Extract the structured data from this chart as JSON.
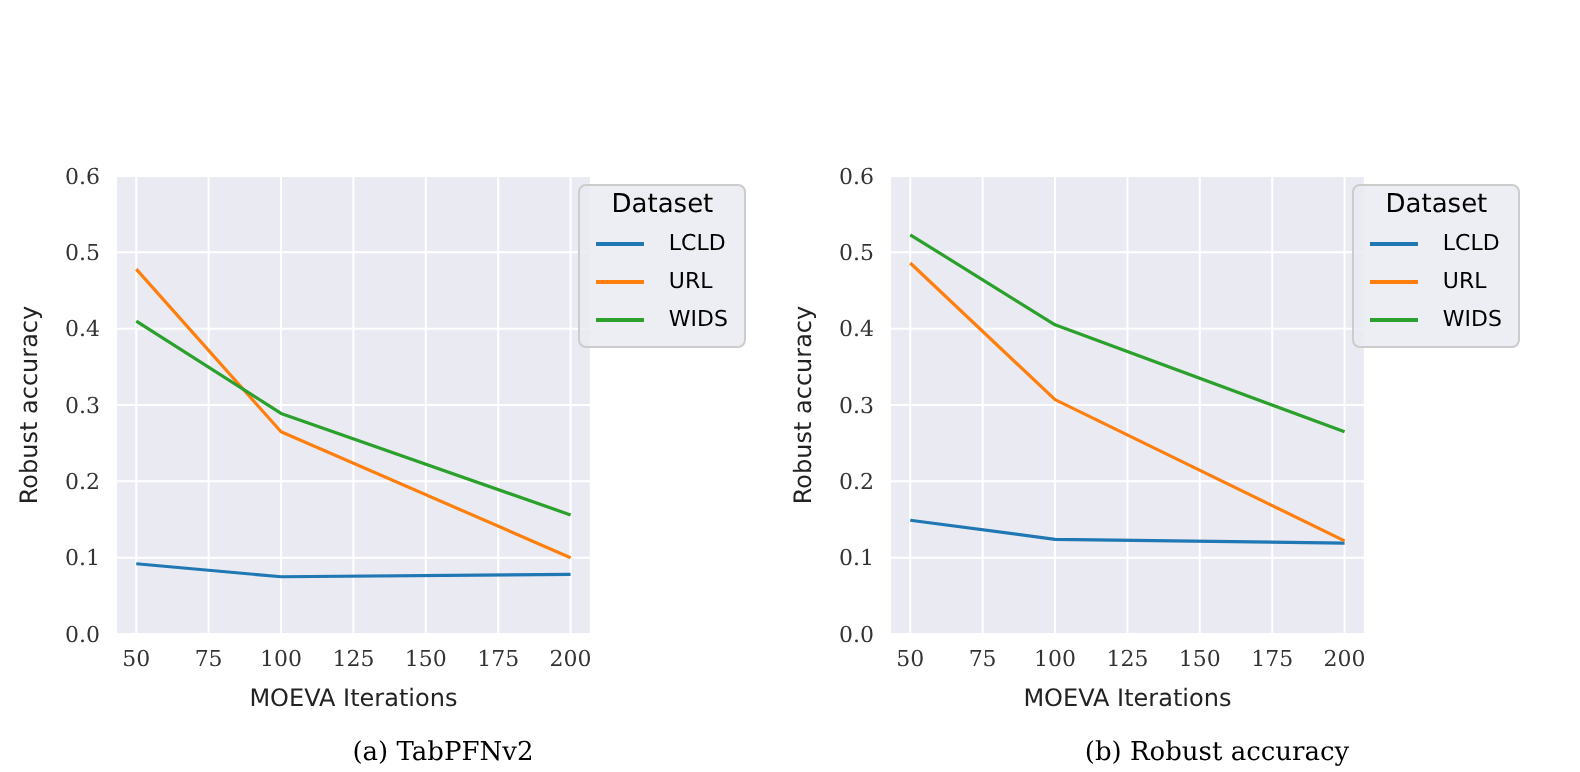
{
  "chart_data": [
    {
      "type": "line",
      "xlabel": "MOEVA Iterations",
      "ylabel": "Robust accuracy",
      "legend_title": "Dataset",
      "annotations": [
        "(a) TabPFNv2"
      ],
      "x": [
        50,
        100,
        200
      ],
      "xlim": [
        43,
        207
      ],
      "xticks": [
        50,
        75,
        100,
        125,
        150,
        175,
        200
      ],
      "ylim": [
        0,
        0.6
      ],
      "yticks": [
        {
          "value": 0,
          "label": "0.0"
        },
        0.1,
        0.2,
        0.3,
        0.4,
        0.5,
        0.6
      ],
      "grid": true,
      "legend": "top right",
      "series": [
        {
          "name": "LCLD",
          "color": "#1f77b4",
          "values": [
            0.092,
            0.075,
            0.078
          ]
        },
        {
          "name": "URL",
          "color": "#ff7f0e",
          "values": [
            0.478,
            0.265,
            0.1
          ]
        },
        {
          "name": "WIDS",
          "color": "#2ca02c",
          "values": [
            0.41,
            0.289,
            0.156
          ]
        }
      ]
    },
    {
      "type": "line",
      "xlabel": "MOEVA Iterations",
      "ylabel": "Robust accuracy",
      "legend_title": "Dataset",
      "annotations": [
        "(b) Robust accuracy"
      ],
      "x": [
        50,
        100,
        200
      ],
      "xlim": [
        43,
        207
      ],
      "xticks": [
        50,
        75,
        100,
        125,
        150,
        175,
        200
      ],
      "ylim": [
        0,
        0.6
      ],
      "yticks": [
        {
          "value": 0,
          "label": "0.0"
        },
        0.1,
        0.2,
        0.3,
        0.4,
        0.5,
        0.6
      ],
      "grid": true,
      "legend": "top right",
      "series": [
        {
          "name": "LCLD",
          "color": "#1f77b4",
          "values": [
            0.149,
            0.124,
            0.119
          ]
        },
        {
          "name": "URL",
          "color": "#ff7f0e",
          "values": [
            0.486,
            0.307,
            0.122
          ]
        },
        {
          "name": "WIDS",
          "color": "#2ca02c",
          "values": [
            0.523,
            0.405,
            0.265
          ]
        }
      ]
    }
  ]
}
